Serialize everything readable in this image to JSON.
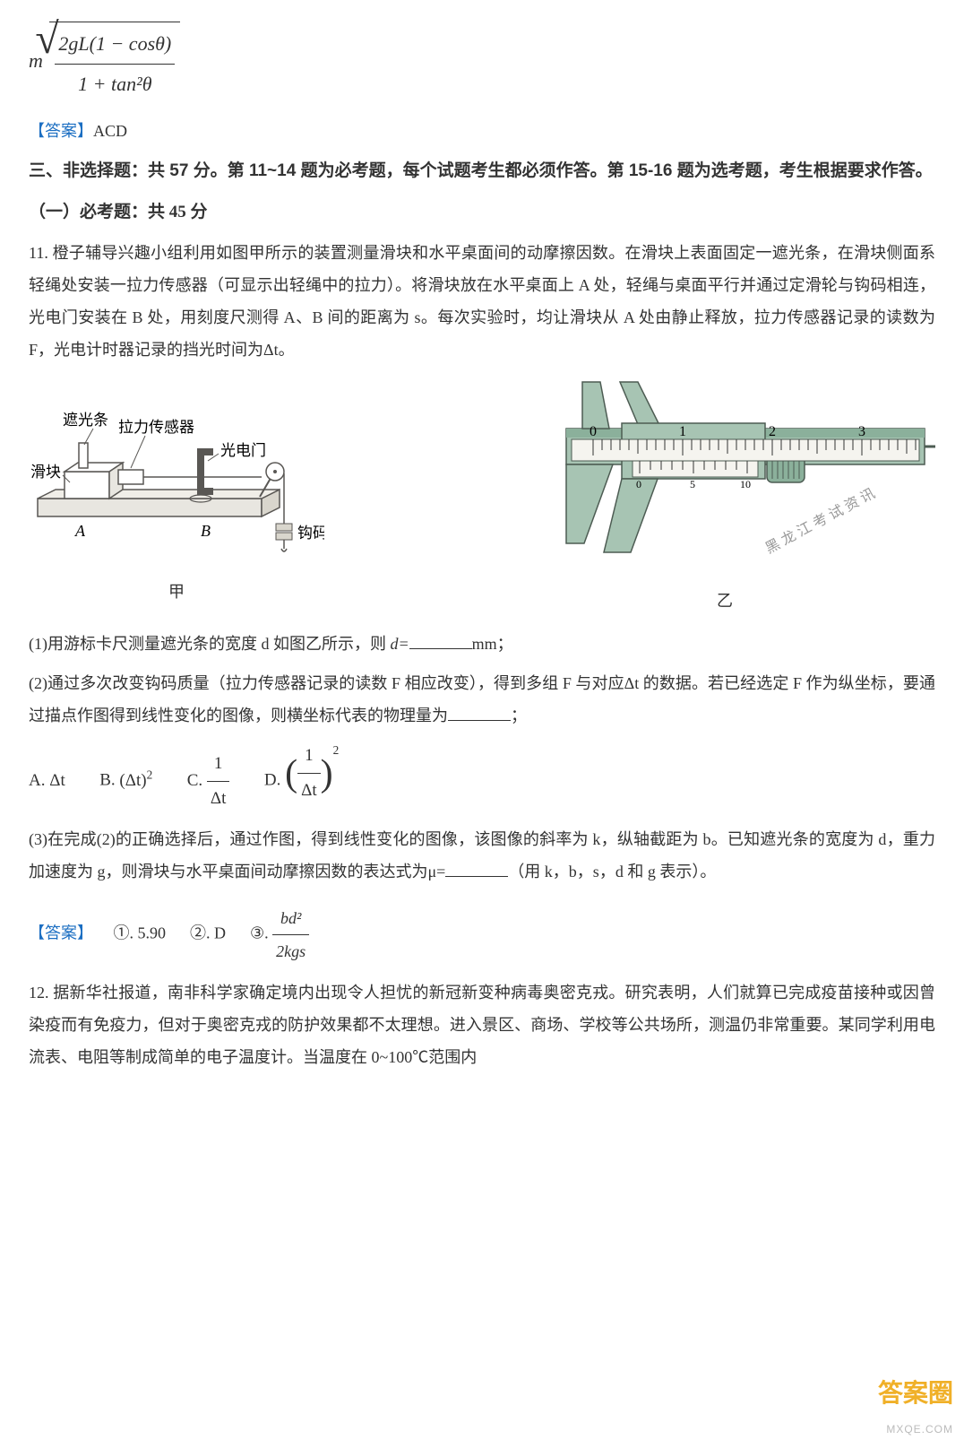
{
  "formula_top": {
    "prefix": "m",
    "numerator": "2gL(1 − cosθ)",
    "denominator": "1 + tan²θ"
  },
  "answer10": {
    "tag": "【答案】",
    "content": "ACD",
    "tag_color": "#1b6ec2"
  },
  "section3": {
    "title": "三、非选择题：共 57 分。第 11~14 题为必考题，每个试题考生都必须作答。第 15-16 题为选考题，考生根据要求作答。",
    "subsection": "（一）必考题：共 45 分"
  },
  "q11": {
    "num": "11.",
    "body": "橙子辅导兴趣小组利用如图甲所示的装置测量滑块和水平桌面间的动摩擦因数。在滑块上表面固定一遮光条，在滑块侧面系轻绳处安装一拉力传感器（可显示出轻绳中的拉力）。将滑块放在水平桌面上 A 处，轻绳与桌面平行并通过定滑轮与钩码相连，光电门安装在 B 处，用刻度尺测得 A、B 间的距离为 s。每次实验时，均让滑块从 A 处由静止释放，拉力传感器记录的读数为 F，光电计时器记录的挡光时间为Δt。",
    "fig_left": {
      "labels": {
        "zhgt": "遮光条",
        "lc": "拉力传感器",
        "hk": "滑块",
        "gdm": "光电门",
        "A": "A",
        "B": "B",
        "gm": "钩码"
      },
      "caption": "甲",
      "colors": {
        "stroke": "#595754",
        "fill1": "#e8e6e0",
        "fill2": "#d9d6cd"
      }
    },
    "fig_right": {
      "ticks_main": [
        "0",
        "1",
        "2",
        "3"
      ],
      "caption": "乙",
      "colors": {
        "body": "#a7c4b3",
        "body_dark": "#8bb09b",
        "scale_bg": "#f5f4ef",
        "stroke": "#4d5c53"
      }
    },
    "watermark": "黑 龙 江   考 试 资 讯",
    "sub1": {
      "prefix": "(1)用游标卡尺测量遮光条的宽度 d 如图乙所示，则 ",
      "var": "d=",
      "unit": "mm；"
    },
    "sub2": {
      "text": "(2)通过多次改变钩码质量（拉力传感器记录的读数 F 相应改变），得到多组 F 与对应Δt 的数据。若已经选定 F 作为纵坐标，要通过描点作图得到线性变化的图像，则横坐标代表的物理量为",
      "suffix": "；"
    },
    "options": {
      "A": {
        "lbl": "A.",
        "expr_type": "plain",
        "expr": "Δt"
      },
      "B": {
        "lbl": "B.",
        "expr_type": "power",
        "base": "(Δt)",
        "exp": "2"
      },
      "C": {
        "lbl": "C.",
        "expr_type": "frac",
        "num": "1",
        "den": "Δt"
      },
      "D": {
        "lbl": "D.",
        "expr_type": "parenfracpow",
        "num": "1",
        "den": "Δt",
        "exp": "2"
      }
    },
    "sub3": {
      "text": "(3)在完成(2)的正确选择后，通过作图，得到线性变化的图像，该图像的斜率为 k，纵轴截距为 b。已知遮光条的宽度为 d，重力加速度为 g，则滑块与水平桌面间动摩擦因数的表达式为μ=",
      "suffix": "（用 k，b，s，d 和 g 表示）。"
    },
    "answer": {
      "tag": "【答案】",
      "tag_color": "#1b6ec2",
      "parts": {
        "p1": {
          "lbl": "①.",
          "val": "5.90"
        },
        "p2": {
          "lbl": "②.",
          "val": "D"
        },
        "p3": {
          "lbl": "③.",
          "num": "bd²",
          "den": "2kgs"
        }
      }
    }
  },
  "q12": {
    "num": "12.",
    "body": "据新华社报道，南非科学家确定境内出现令人担忧的新冠新变种病毒奥密克戎。研究表明，人们就算已完成疫苗接种或因曾染疫而有免疫力，但对于奥密克戎的防护效果都不太理想。进入景区、商场、学校等公共场所，测温仍非常重要。某同学利用电流表、电阻等制成简单的电子温度计。当温度在 0~100℃范围内"
  },
  "bottom_watermark": {
    "line1": "答案圈",
    "line2": "MXQE.COM"
  }
}
